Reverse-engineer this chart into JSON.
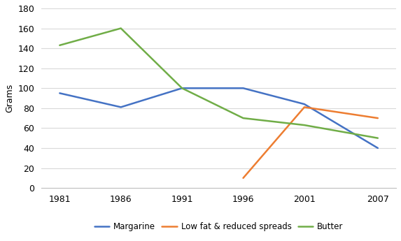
{
  "years": [
    1981,
    1986,
    1991,
    1996,
    2001,
    2007
  ],
  "margarine": [
    95,
    81,
    100,
    100,
    84,
    40
  ],
  "low_fat": [
    null,
    null,
    null,
    10,
    81,
    70
  ],
  "butter": [
    143,
    160,
    100,
    70,
    63,
    50
  ],
  "series_labels": [
    "Margarine",
    "Low fat & reduced spreads",
    "Butter"
  ],
  "series_colors": [
    "#4472C4",
    "#ED7D31",
    "#70AD47"
  ],
  "ylabel": "Grams",
  "ylim": [
    0,
    180
  ],
  "yticks": [
    0,
    20,
    40,
    60,
    80,
    100,
    120,
    140,
    160,
    180
  ],
  "xtick_labels": [
    "1981",
    "1986",
    "1991",
    "1996",
    "2001",
    "2007"
  ],
  "background_color": "#ffffff",
  "grid_color": "#d9d9d9",
  "linewidth": 1.8,
  "tick_fontsize": 9,
  "ylabel_fontsize": 9,
  "legend_fontsize": 8.5
}
